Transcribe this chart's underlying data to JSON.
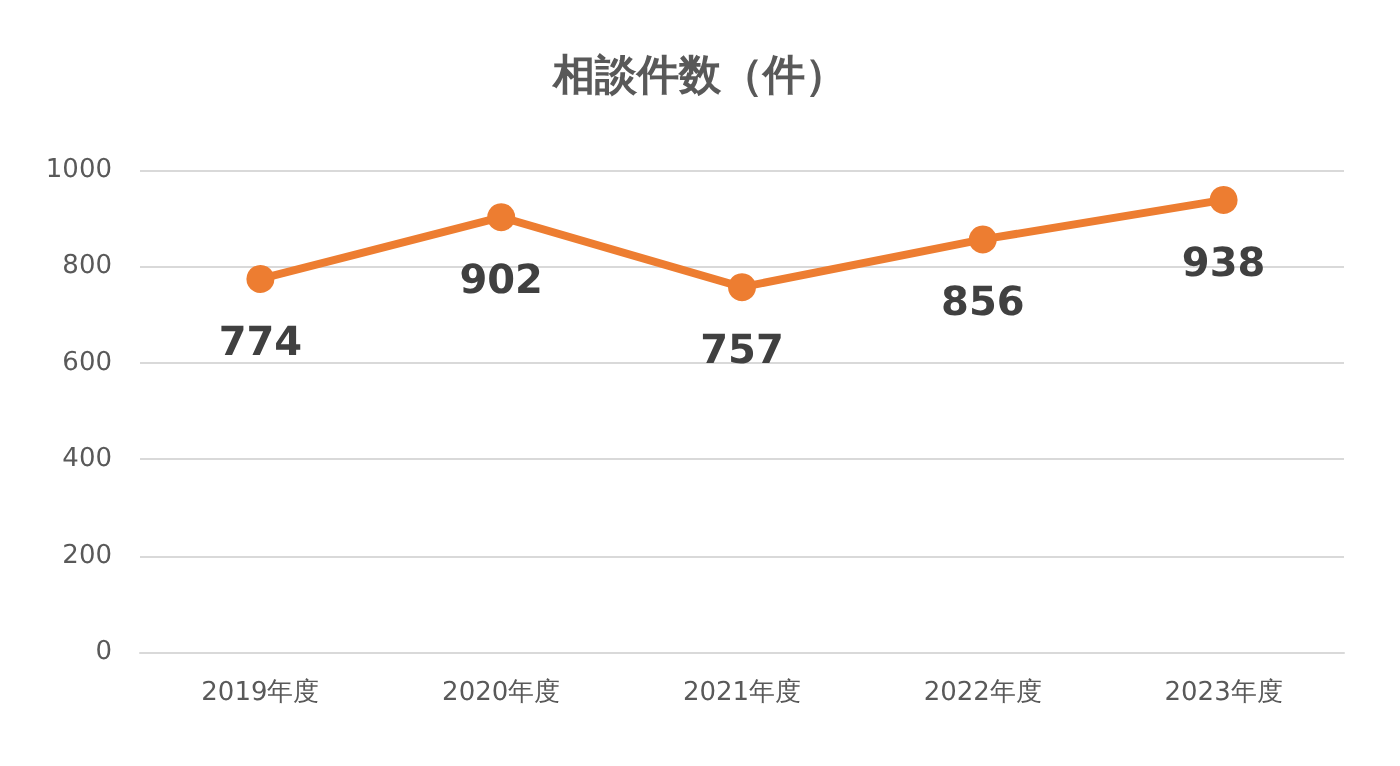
{
  "chart_data": {
    "type": "line",
    "title": "相談件数（件）",
    "categories": [
      "2019年度",
      "2020年度",
      "2021年度",
      "2022年度",
      "2023年度"
    ],
    "series": [
      {
        "color": "#ed7d31",
        "values": [
          774,
          902,
          757,
          856,
          938
        ]
      }
    ],
    "ylim": [
      0,
      1000
    ],
    "yticks": [
      0,
      200,
      400,
      600,
      800,
      1000
    ],
    "grid": "y",
    "marker": "circle",
    "line_style": "solid",
    "data_labels": true
  }
}
